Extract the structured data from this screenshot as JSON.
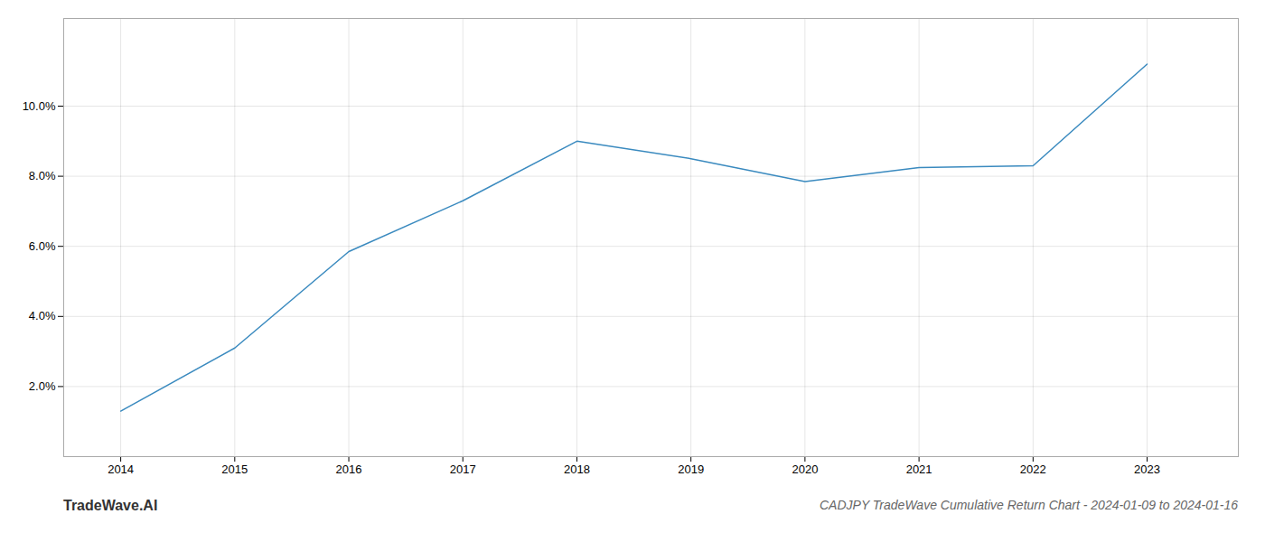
{
  "chart_data": {
    "type": "line",
    "title": "CADJPY TradeWave Cumulative Return Chart - 2024-01-09 to 2024-01-16",
    "annotations": [
      "TradeWave.AI"
    ],
    "x": [
      2014,
      2015,
      2016,
      2017,
      2018,
      2019,
      2020,
      2021,
      2022,
      2023
    ],
    "values": [
      1.3,
      3.1,
      5.85,
      7.3,
      9.0,
      8.5,
      7.85,
      8.25,
      8.3,
      11.2
    ],
    "color": "#3a8abf",
    "xlim": [
      2013.5,
      2023.8
    ],
    "xticks": [
      2014,
      2015,
      2016,
      2017,
      2018,
      2019,
      2020,
      2021,
      2022,
      2023
    ],
    "ylim": [
      0.0,
      12.5
    ],
    "yticks": [
      {
        "value": 2.0,
        "label": "2.0%"
      },
      {
        "value": 4.0,
        "label": "4.0%"
      },
      {
        "value": 6.0,
        "label": "6.0%"
      },
      {
        "value": 8.0,
        "label": "8.0%"
      },
      {
        "value": 10.0,
        "label": "10.0%"
      }
    ],
    "grid": true
  }
}
